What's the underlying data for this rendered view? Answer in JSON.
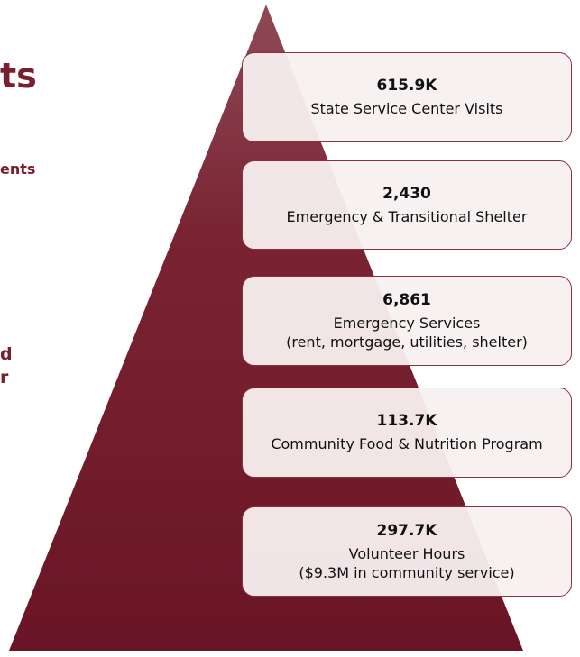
{
  "left_text": [
    "ts",
    "ents",
    "d",
    "r"
  ],
  "tiers": [
    {
      "value": "615.9K",
      "lines": [
        "State Service Center Visits"
      ]
    },
    {
      "value": "2,430",
      "lines": [
        "Emergency & Transitional Shelter"
      ]
    },
    {
      "value": "6,861",
      "lines": [
        "Emergency Services",
        "(rent, mortgage, utilities, shelter)"
      ]
    },
    {
      "value": "113.7K",
      "lines": [
        "Community Food & Nutrition Program"
      ]
    },
    {
      "value": "297.7K",
      "lines": [
        "Volunteer Hours",
        "($9.3M in community service)"
      ]
    }
  ]
}
